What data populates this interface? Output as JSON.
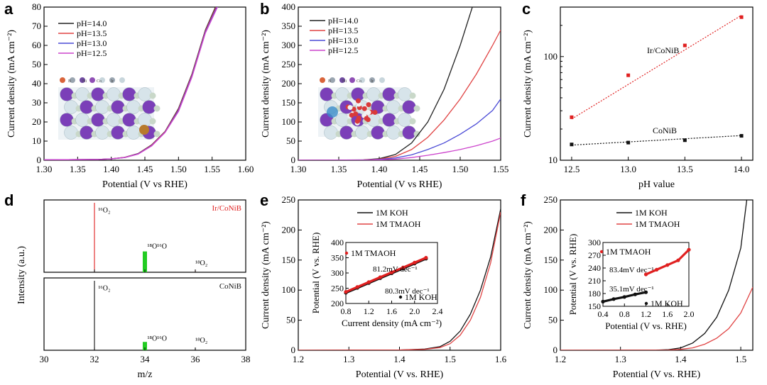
{
  "panel_letters": [
    "a",
    "b",
    "c",
    "d",
    "e",
    "f"
  ],
  "crystal_legend_symbols": [
    "B",
    "Ni",
    "Co",
    "Ir"
  ],
  "chart_data": [
    {
      "panel": "a",
      "type": "line",
      "xlabel": "Potential (V vs RHE)",
      "ylabel": "Current density (mA cm⁻²)",
      "xlim": [
        1.3,
        1.6
      ],
      "ylim": [
        0,
        80
      ],
      "xticks": [
        "1.30",
        "1.35",
        "1.40",
        "1.45",
        "1.50",
        "1.55",
        "1.60"
      ],
      "yticks": [
        "0",
        "10",
        "20",
        "30",
        "40",
        "50",
        "60",
        "70",
        "80"
      ],
      "legend_position": "top-left",
      "series": [
        {
          "name": "pH=14.0",
          "color": "#222222",
          "x": [
            1.3,
            1.38,
            1.4,
            1.42,
            1.44,
            1.46,
            1.48,
            1.5,
            1.52,
            1.54,
            1.555
          ],
          "y": [
            0.2,
            0.4,
            0.7,
            1.5,
            3.5,
            8,
            15,
            27,
            45,
            68,
            80
          ]
        },
        {
          "name": "pH=13.5",
          "color": "#e04444",
          "x": [
            1.3,
            1.38,
            1.4,
            1.42,
            1.44,
            1.46,
            1.48,
            1.5,
            1.52,
            1.54,
            1.556
          ],
          "y": [
            0.2,
            0.4,
            0.7,
            1.5,
            3.4,
            7.8,
            14.8,
            26.5,
            44.5,
            67.5,
            80
          ]
        },
        {
          "name": "pH=13.0",
          "color": "#4b4bd6",
          "x": [
            1.3,
            1.38,
            1.4,
            1.42,
            1.44,
            1.46,
            1.48,
            1.5,
            1.52,
            1.54,
            1.557
          ],
          "y": [
            0.2,
            0.4,
            0.7,
            1.4,
            3.3,
            7.6,
            14.6,
            26,
            44,
            67,
            80
          ]
        },
        {
          "name": "pH=12.5",
          "color": "#cc44cc",
          "x": [
            1.3,
            1.38,
            1.4,
            1.42,
            1.44,
            1.46,
            1.48,
            1.5,
            1.52,
            1.54,
            1.558
          ],
          "y": [
            0.2,
            0.4,
            0.7,
            1.4,
            3.2,
            7.5,
            14.5,
            25.5,
            43.5,
            66.5,
            80
          ]
        }
      ]
    },
    {
      "panel": "b",
      "type": "line",
      "xlabel": "Potential (V vs RHE)",
      "ylabel": "Current density (mA cm⁻²)",
      "xlim": [
        1.3,
        1.55
      ],
      "ylim": [
        0,
        400
      ],
      "xticks": [
        "1.30",
        "1.35",
        "1.40",
        "1.45",
        "1.50",
        "1.55"
      ],
      "yticks": [
        "0",
        "50",
        "100",
        "150",
        "200",
        "250",
        "300",
        "350",
        "400"
      ],
      "legend_position": "top-left",
      "series": [
        {
          "name": "pH=14.0",
          "color": "#222222",
          "x": [
            1.3,
            1.38,
            1.4,
            1.42,
            1.44,
            1.46,
            1.48,
            1.5,
            1.515
          ],
          "y": [
            0,
            1,
            4,
            15,
            45,
            100,
            185,
            300,
            400
          ]
        },
        {
          "name": "pH=13.5",
          "color": "#e04444",
          "x": [
            1.3,
            1.38,
            1.4,
            1.42,
            1.44,
            1.46,
            1.48,
            1.5,
            1.52,
            1.54,
            1.55
          ],
          "y": [
            0,
            0.5,
            3,
            10,
            28,
            60,
            105,
            160,
            225,
            300,
            340
          ]
        },
        {
          "name": "pH=13.0",
          "color": "#4b4bd6",
          "x": [
            1.3,
            1.38,
            1.4,
            1.42,
            1.44,
            1.46,
            1.48,
            1.5,
            1.52,
            1.54,
            1.55
          ],
          "y": [
            0,
            0.3,
            2,
            6,
            14,
            28,
            45,
            68,
            95,
            130,
            160
          ]
        },
        {
          "name": "pH=12.5",
          "color": "#cc44cc",
          "x": [
            1.3,
            1.38,
            1.4,
            1.42,
            1.44,
            1.46,
            1.48,
            1.5,
            1.52,
            1.54,
            1.55
          ],
          "y": [
            0,
            0.2,
            1,
            3,
            7,
            13,
            20,
            28,
            38,
            50,
            58
          ]
        }
      ]
    },
    {
      "panel": "c",
      "type": "scatter",
      "xlabel": "pH value",
      "ylabel": "Current density (mA cm⁻²)",
      "xlim": [
        12.4,
        14.1
      ],
      "ylim": [
        10,
        300
      ],
      "yscale": "log",
      "xticks": [
        "12.5",
        "13.0",
        "13.5",
        "14.0"
      ],
      "yticks": [
        "10",
        "100"
      ],
      "series": [
        {
          "name": "Ir/CoNiB",
          "color": "#e02020",
          "x": [
            12.5,
            13.0,
            13.5,
            14.0
          ],
          "y": [
            26,
            66,
            128,
            240
          ],
          "fit": [
            25,
            250
          ]
        },
        {
          "name": "CoNiB",
          "color": "#111111",
          "x": [
            12.5,
            13.0,
            13.5,
            14.0
          ],
          "y": [
            14.2,
            14.8,
            15.6,
            17.2
          ],
          "fit": [
            14,
            17.3
          ]
        }
      ]
    },
    {
      "panel": "d",
      "type": "bar",
      "xlabel": "m/z",
      "ylabel": "Intensity (a.u.)",
      "xlim": [
        30,
        38
      ],
      "xticks": [
        "30",
        "32",
        "34",
        "36",
        "38"
      ],
      "spectra": [
        {
          "name": "Ir/CoNiB",
          "color": "#e02020",
          "peaks": [
            {
              "x": 32,
              "h": 1.0,
              "color": "#e02020"
            },
            {
              "x": 34,
              "h": 0.3,
              "color": "#22cc22"
            },
            {
              "x": 36,
              "h": 0.03,
              "color": "#e02020"
            }
          ],
          "labels": [
            {
              "text": "¹⁶O₂",
              "x": 32.15,
              "h": 0.86
            },
            {
              "text": "¹⁸O¹⁶O",
              "x": 34.1,
              "h": 0.34
            },
            {
              "text": "¹⁸O₂",
              "x": 36.0,
              "h": 0.1
            }
          ]
        },
        {
          "name": "CoNiB",
          "color": "#111111",
          "peaks": [
            {
              "x": 32,
              "h": 1.0,
              "color": "#111111"
            },
            {
              "x": 34,
              "h": 0.12,
              "color": "#22cc22"
            },
            {
              "x": 36,
              "h": 0.03,
              "color": "#111111"
            }
          ],
          "labels": [
            {
              "text": "¹⁶O₂",
              "x": 32.15,
              "h": 0.86
            },
            {
              "text": "¹⁸O¹⁶O",
              "x": 34.1,
              "h": 0.14
            },
            {
              "text": "¹⁸O₂",
              "x": 36.0,
              "h": 0.11
            }
          ]
        }
      ]
    },
    {
      "panel": "e",
      "type": "line",
      "xlabel": "Potential (V vs. RHE)",
      "ylabel": "Current density (mA cm⁻²)",
      "xlim": [
        1.2,
        1.6
      ],
      "ylim": [
        0,
        250
      ],
      "xticks": [
        "1.2",
        "1.3",
        "1.4",
        "1.5",
        "1.6"
      ],
      "yticks": [
        "0",
        "50",
        "100",
        "150",
        "200",
        "250"
      ],
      "series": [
        {
          "name": "1M KOH",
          "color": "#111111",
          "x": [
            1.2,
            1.4,
            1.45,
            1.48,
            1.5,
            1.52,
            1.54,
            1.56,
            1.58,
            1.6
          ],
          "y": [
            0,
            0.5,
            2,
            6,
            15,
            32,
            60,
            100,
            155,
            235
          ]
        },
        {
          "name": "1M TMAOH",
          "color": "#e04444",
          "x": [
            1.2,
            1.4,
            1.45,
            1.48,
            1.5,
            1.52,
            1.54,
            1.56,
            1.58,
            1.6
          ],
          "y": [
            0,
            0.4,
            1.5,
            4.5,
            11,
            25,
            50,
            88,
            145,
            230
          ]
        }
      ],
      "inset": {
        "xlabel": "Current density (mA cm⁻²)",
        "ylabel": "Potential (V vs. RHE)",
        "xlim": [
          0.8,
          2.4
        ],
        "ylim": [
          200,
          400
        ],
        "xticks": [
          "0.8",
          "1.2",
          "1.6",
          "2.0",
          "2.4"
        ],
        "yticks": [
          "200",
          "250",
          "300",
          "350",
          "400"
        ],
        "annotations": [
          "81.2mV dec⁻¹",
          "80.3mV dec⁻¹"
        ],
        "series": [
          {
            "name": "1M KOH",
            "color": "#111111",
            "x": [
              0.8,
              1.0,
              1.2,
              1.4,
              1.6,
              1.8,
              2.0,
              2.2
            ],
            "y": [
              235,
              251,
              267,
              283,
              299,
              315,
              331,
              347
            ]
          },
          {
            "name": "1M TMAOH",
            "color": "#e02020",
            "x": [
              0.8,
              1.0,
              1.2,
              1.4,
              1.6,
              1.8,
              2.0,
              2.2
            ],
            "y": [
              238,
              254,
              270,
              286,
              302,
              318,
              334,
              350
            ]
          }
        ]
      }
    },
    {
      "panel": "f",
      "type": "line",
      "xlabel": "Potential (V vs. RHE)",
      "ylabel": "Current density (mA cm⁻²)",
      "xlim": [
        1.2,
        1.52
      ],
      "ylim": [
        0,
        250
      ],
      "xticks": [
        "1.2",
        "1.3",
        "1.4",
        "1.5"
      ],
      "yticks": [
        "0",
        "50",
        "100",
        "150",
        "200",
        "250"
      ],
      "series": [
        {
          "name": "1M KOH",
          "color": "#111111",
          "x": [
            1.2,
            1.36,
            1.38,
            1.4,
            1.42,
            1.44,
            1.46,
            1.48,
            1.5,
            1.51
          ],
          "y": [
            0,
            0.2,
            1,
            4,
            12,
            28,
            55,
            100,
            170,
            250
          ]
        },
        {
          "name": "1M TMAOH",
          "color": "#e04444",
          "x": [
            1.2,
            1.38,
            1.4,
            1.42,
            1.44,
            1.46,
            1.48,
            1.5,
            1.52
          ],
          "y": [
            0,
            0.2,
            1.5,
            4,
            10,
            20,
            36,
            62,
            105
          ]
        }
      ],
      "inset": {
        "xlabel": "Potential (V vs. RHE)",
        "ylabel": "Potential (V vs. RHE)",
        "xlim": [
          0.4,
          2.0
        ],
        "ylim": [
          150,
          300
        ],
        "xticks": [
          "0.4",
          "0.8",
          "1.2",
          "1.6",
          "2.0"
        ],
        "yticks": [
          "150",
          "180",
          "210",
          "240",
          "270",
          "300"
        ],
        "annotations": [
          "83.4mV dec⁻¹",
          "35.1mV dec⁻¹"
        ],
        "series": [
          {
            "name": "1M KOH",
            "color": "#111111",
            "x": [
              0.4,
              0.6,
              0.8,
              1.0,
              1.2
            ],
            "y": [
              161,
              167,
              172,
              178,
              183
            ]
          },
          {
            "name": "1M TMAOH",
            "color": "#e02020",
            "x": [
              1.2,
              1.4,
              1.6,
              1.8,
              2.0
            ],
            "y": [
              225,
              236,
              247,
              258,
              283
            ]
          }
        ]
      }
    }
  ]
}
